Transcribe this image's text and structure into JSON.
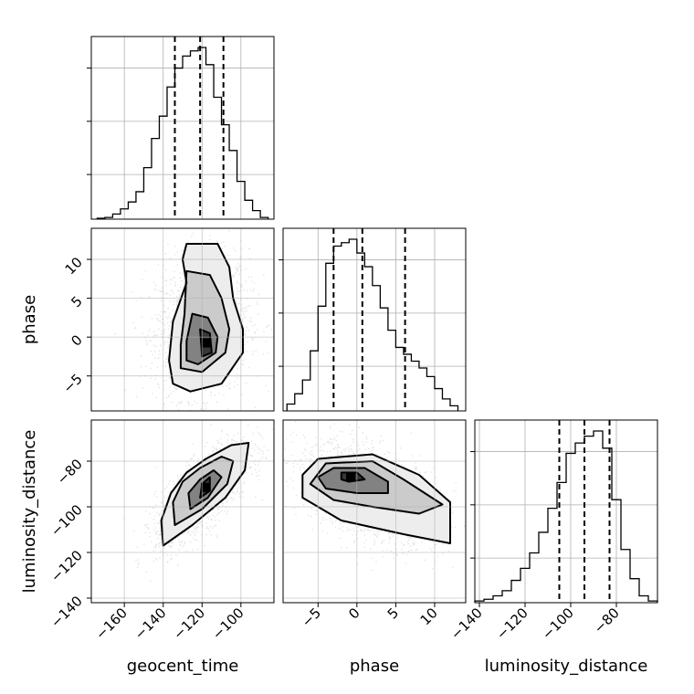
{
  "chart_data": {
    "type": "corner",
    "parameters": [
      "geocent_time",
      "phase",
      "luminosity_distance"
    ],
    "axes": {
      "geocent_time": {
        "label": "geocent_time",
        "range": [
          -177,
          -83
        ],
        "ticks": [
          -160,
          -140,
          -120,
          -100
        ],
        "tick_labels": [
          "−160",
          "−140",
          "−120",
          "−100"
        ],
        "mean": -120,
        "sigma": 12
      },
      "phase": {
        "label": "phase",
        "range": [
          -9.5,
          14
        ],
        "ticks": [
          -5,
          0,
          5,
          10
        ],
        "tick_labels": [
          "−5",
          "0",
          "5",
          "10"
        ],
        "mean": 1.5,
        "sigma": 4.5
      },
      "luminosity_distance": {
        "label": "luminosity_distance",
        "range": [
          -142,
          -62
        ],
        "ticks": [
          -140,
          -120,
          -100,
          -80
        ],
        "tick_labels": [
          "−140",
          "−120",
          "−100",
          "−80"
        ],
        "mean": -94,
        "sigma": 11
      }
    },
    "marginals": [
      {
        "param": "geocent_time",
        "quantiles": [
          -134,
          -121,
          -109
        ],
        "hist_x": [
          -172,
          -168,
          -164,
          -160,
          -156,
          -152,
          -148,
          -144,
          -140,
          -136,
          -132,
          -128,
          -124,
          -120,
          -116,
          -112,
          -108,
          -104,
          -100,
          -96,
          -92,
          -88
        ],
        "hist_rel_height": [
          0.005,
          0.01,
          0.03,
          0.06,
          0.1,
          0.16,
          0.3,
          0.47,
          0.6,
          0.77,
          0.88,
          0.95,
          0.98,
          1.0,
          0.9,
          0.71,
          0.55,
          0.4,
          0.22,
          0.11,
          0.05,
          0.01
        ]
      },
      {
        "param": "phase",
        "quantiles": [
          -3,
          0.7,
          6.2
        ],
        "hist_x": [
          -8.5,
          -7.5,
          -6.5,
          -5.5,
          -4.5,
          -3.5,
          -2.5,
          -1.5,
          -0.5,
          0.5,
          1.5,
          2.5,
          3.5,
          4.5,
          5.5,
          6.5,
          7.5,
          8.5,
          9.5,
          10.5,
          11.5,
          12.5
        ],
        "hist_rel_height": [
          0.04,
          0.1,
          0.18,
          0.35,
          0.61,
          0.86,
          0.96,
          0.98,
          1.0,
          0.92,
          0.84,
          0.73,
          0.6,
          0.47,
          0.37,
          0.33,
          0.29,
          0.25,
          0.2,
          0.13,
          0.07,
          0.03
        ]
      },
      {
        "param": "luminosity_distance",
        "quantiles": [
          -105,
          -94,
          -83
        ],
        "hist_x": [
          -140,
          -136,
          -132,
          -128,
          -124,
          -120,
          -116,
          -112,
          -108,
          -104,
          -100,
          -96,
          -92,
          -88,
          -84,
          -80,
          -76,
          -72,
          -68,
          -64
        ],
        "hist_rel_height": [
          0.01,
          0.02,
          0.04,
          0.07,
          0.13,
          0.2,
          0.29,
          0.41,
          0.55,
          0.7,
          0.87,
          0.93,
          0.97,
          1.0,
          0.9,
          0.6,
          0.31,
          0.14,
          0.04,
          0.01
        ]
      }
    ],
    "pairs": [
      {
        "x": "geocent_time",
        "y": "phase",
        "correlation": 0.1,
        "contours": [
          [
            [
              -128,
              12
            ],
            [
              -112,
              12
            ],
            [
              -106,
              9
            ],
            [
              -104,
              5
            ],
            [
              -99,
              1
            ],
            [
              -99,
              -2
            ],
            [
              -110,
              -6
            ],
            [
              -126,
              -7
            ],
            [
              -135,
              -6
            ],
            [
              -137,
              -3
            ],
            [
              -135,
              2
            ],
            [
              -128,
              7
            ],
            [
              -130,
              10
            ]
          ],
          [
            [
              -128,
              8.5
            ],
            [
              -116,
              8
            ],
            [
              -110,
              5
            ],
            [
              -106,
              1
            ],
            [
              -108,
              -2
            ],
            [
              -120,
              -4.5
            ],
            [
              -131,
              -4
            ],
            [
              -131,
              -1
            ],
            [
              -129,
              3
            ]
          ],
          [
            [
              -125,
              3
            ],
            [
              -117,
              2.5
            ],
            [
              -112,
              0
            ],
            [
              -113,
              -2
            ],
            [
              -122,
              -3.5
            ],
            [
              -128,
              -3
            ],
            [
              -128,
              -0.5
            ]
          ],
          [
            [
              -121,
              1
            ],
            [
              -116,
              0.5
            ],
            [
              -115,
              -2
            ],
            [
              -120,
              -2.5
            ]
          ]
        ]
      },
      {
        "x": "geocent_time",
        "y": "luminosity_distance",
        "correlation": 0.72,
        "contours": [
          [
            [
              -140,
              -117
            ],
            [
              -125,
              -108
            ],
            [
              -108,
              -96
            ],
            [
              -98,
              -84
            ],
            [
              -96,
              -72
            ],
            [
              -105,
              -73
            ],
            [
              -118,
              -79
            ],
            [
              -128,
              -85
            ],
            [
              -136,
              -94
            ],
            [
              -141,
              -106
            ]
          ],
          [
            [
              -134,
              -108
            ],
            [
              -120,
              -101
            ],
            [
              -107,
              -90
            ],
            [
              -104,
              -80
            ],
            [
              -110,
              -78
            ],
            [
              -121,
              -83
            ],
            [
              -130,
              -89
            ],
            [
              -135,
              -98
            ]
          ],
          [
            [
              -126,
              -101
            ],
            [
              -117,
              -96
            ],
            [
              -110,
              -87
            ],
            [
              -114,
              -84
            ],
            [
              -121,
              -88
            ],
            [
              -127,
              -94
            ]
          ],
          [
            [
              -121,
              -96
            ],
            [
              -116,
              -93
            ],
            [
              -116,
              -87
            ],
            [
              -120,
              -90
            ]
          ]
        ]
      },
      {
        "x": "phase",
        "y": "luminosity_distance",
        "correlation": -0.45,
        "contours": [
          [
            [
              -5,
              -79
            ],
            [
              2,
              -77
            ],
            [
              8,
              -86
            ],
            [
              12,
              -98
            ],
            [
              12,
              -116
            ],
            [
              6,
              -112
            ],
            [
              -2,
              -106
            ],
            [
              -7,
              -96
            ],
            [
              -7,
              -86
            ]
          ],
          [
            [
              -4,
              -81
            ],
            [
              2,
              -80
            ],
            [
              6,
              -88
            ],
            [
              11,
              -99
            ],
            [
              8,
              -103
            ],
            [
              2,
              -100
            ],
            [
              -3,
              -97
            ],
            [
              -6,
              -90
            ]
          ],
          [
            [
              -3,
              -83
            ],
            [
              1,
              -83
            ],
            [
              4,
              -89
            ],
            [
              4,
              -94
            ],
            [
              0,
              -94
            ],
            [
              -4,
              -92
            ],
            [
              -5,
              -87
            ]
          ],
          [
            [
              -2,
              -85
            ],
            [
              0,
              -85
            ],
            [
              1,
              -88
            ],
            [
              -1,
              -89
            ],
            [
              -2,
              -88
            ]
          ]
        ]
      }
    ]
  }
}
